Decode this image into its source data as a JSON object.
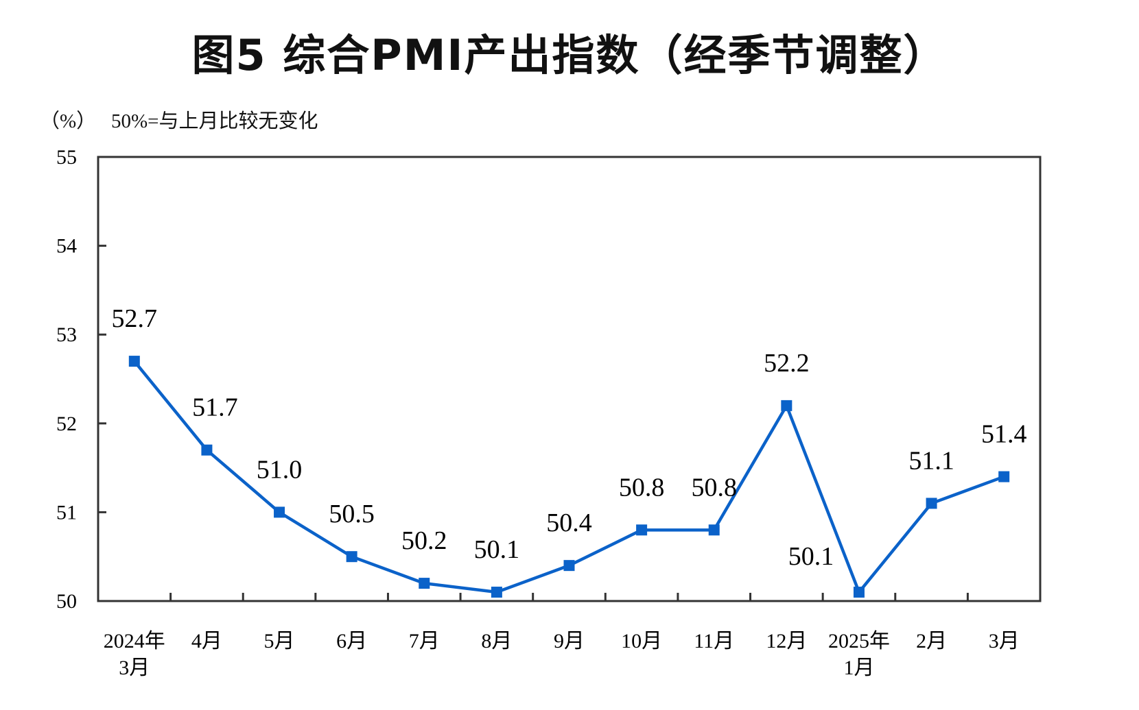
{
  "chart_data": {
    "type": "line",
    "title": "图5  综合PMI产出指数（经季节调整）",
    "ylabel": "（%）",
    "annotation": "50%=与上月比较无变化",
    "categories": [
      [
        "2024年",
        "3月"
      ],
      [
        "4月"
      ],
      [
        "5月"
      ],
      [
        "6月"
      ],
      [
        "7月"
      ],
      [
        "8月"
      ],
      [
        "9月"
      ],
      [
        "10月"
      ],
      [
        "11月"
      ],
      [
        "12月"
      ],
      [
        "2025年",
        "1月"
      ],
      [
        "2月"
      ],
      [
        "3月"
      ]
    ],
    "values": [
      52.7,
      51.7,
      51.0,
      50.5,
      50.2,
      50.1,
      50.4,
      50.8,
      50.8,
      52.2,
      50.1,
      51.1,
      51.4
    ],
    "data_labels": [
      "52.7",
      "51.7",
      "51.0",
      "50.5",
      "50.2",
      "50.1",
      "50.4",
      "50.8",
      "50.8",
      "52.2",
      "50.1",
      "51.1",
      "51.4"
    ],
    "ylim": [
      50,
      55
    ],
    "yticks": [
      "50",
      "51",
      "52",
      "53",
      "54",
      "55"
    ],
    "grid": false,
    "line_color": "#0b62c9",
    "marker": "square"
  }
}
